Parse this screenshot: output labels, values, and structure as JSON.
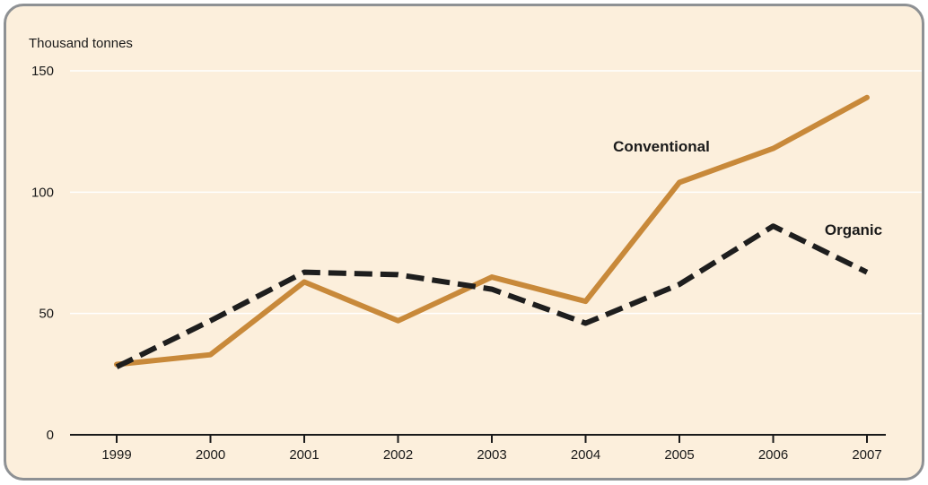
{
  "chart_data": {
    "type": "line",
    "title": "",
    "ylabel": "Thousand tonnes",
    "xlabel": "",
    "x": [
      "1999",
      "2000",
      "2001",
      "2002",
      "2003",
      "2004",
      "2005",
      "2006",
      "2007"
    ],
    "yticks": [
      "0",
      "50",
      "100",
      "150"
    ],
    "ylim": [
      0,
      150
    ],
    "grid": true,
    "series": [
      {
        "name": "Conventional",
        "values": [
          29,
          33,
          63,
          47,
          65,
          55,
          104,
          118,
          139
        ],
        "color": "#c8893a",
        "style": "solid"
      },
      {
        "name": "Organic",
        "values": [
          28,
          47,
          67,
          66,
          60,
          46,
          62,
          86,
          67
        ],
        "color": "#1e1e1e",
        "style": "dashed"
      }
    ]
  }
}
